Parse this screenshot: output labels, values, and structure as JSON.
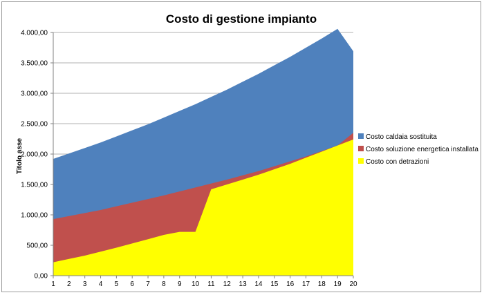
{
  "chart_data": {
    "type": "area",
    "title": "Costo di gestione impianto",
    "xlabel": "",
    "ylabel": "Titolo asse",
    "x": [
      1,
      2,
      3,
      4,
      5,
      6,
      7,
      8,
      9,
      10,
      11,
      12,
      13,
      14,
      15,
      16,
      17,
      18,
      19,
      20
    ],
    "ylim": [
      0,
      4000
    ],
    "y_ticks": [
      0,
      500,
      1000,
      1500,
      2000,
      2500,
      3000,
      3500,
      4000
    ],
    "y_tick_labels": [
      "0,00",
      "500,00",
      "1.000,00",
      "1.500,00",
      "2.000,00",
      "2.500,00",
      "3.000,00",
      "3.500,00",
      "4.000,00"
    ],
    "grid": "horizontal",
    "legend_position": "right",
    "stacked": false,
    "series": [
      {
        "name": "Costo caldaia sostituita",
        "color": "#4F81BD",
        "values": [
          1920,
          2010,
          2100,
          2190,
          2290,
          2390,
          2490,
          2600,
          2710,
          2820,
          2940,
          3060,
          3190,
          3320,
          3460,
          3600,
          3750,
          3900,
          4060,
          3690
        ]
      },
      {
        "name": "Costo soluzione energetica installata",
        "color": "#C0504D",
        "values": [
          930,
          980,
          1030,
          1080,
          1140,
          1200,
          1260,
          1320,
          1385,
          1450,
          1515,
          1580,
          1650,
          1720,
          1800,
          1880,
          1960,
          2050,
          2140,
          2350
        ]
      },
      {
        "name": "Costo con detrazioni",
        "color": "#FFFF00",
        "values": [
          220,
          275,
          330,
          395,
          460,
          530,
          600,
          670,
          720,
          720,
          1420,
          1500,
          1580,
          1660,
          1750,
          1840,
          1940,
          2040,
          2140,
          2240
        ]
      }
    ]
  }
}
